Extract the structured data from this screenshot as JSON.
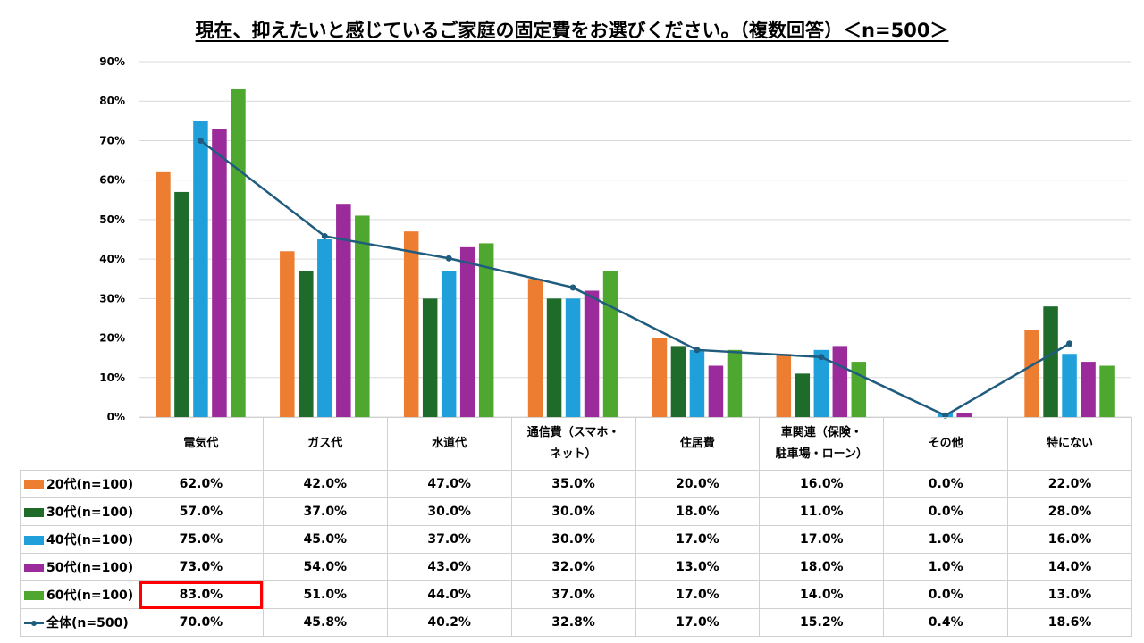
{
  "chart_data": {
    "type": "bar",
    "title": "現在、抑えたいと感じているご家庭の固定費をお選びください。（複数回答）＜n=500＞",
    "categories": [
      "電気代",
      "ガス代",
      "水道代",
      "通信費（スマホ・ネット）",
      "住居費",
      "車関連（保険・駐車場・ローン）",
      "その他",
      "特にない"
    ],
    "category_labels": [
      [
        "電気代"
      ],
      [
        "ガス代"
      ],
      [
        "水道代"
      ],
      [
        "通信費（スマホ・",
        "ネット）"
      ],
      [
        "住居費"
      ],
      [
        "車関連（保険・",
        "駐車場・ローン）"
      ],
      [
        "その他"
      ],
      [
        "特にない"
      ]
    ],
    "ylim": [
      0,
      90
    ],
    "yticks": [
      "0%",
      "10%",
      "20%",
      "30%",
      "40%",
      "50%",
      "60%",
      "70%",
      "80%",
      "90%"
    ],
    "grid": true,
    "series": [
      {
        "name": "20代(n=100)",
        "kind": "bar",
        "color": "#ED7D31",
        "values": [
          62.0,
          42.0,
          47.0,
          35.0,
          20.0,
          16.0,
          0.0,
          22.0
        ],
        "labels": [
          "62.0%",
          "42.0%",
          "47.0%",
          "35.0%",
          "20.0%",
          "16.0%",
          "0.0%",
          "22.0%"
        ]
      },
      {
        "name": "30代(n=100)",
        "kind": "bar",
        "color": "#1E6B2A",
        "values": [
          57.0,
          37.0,
          30.0,
          30.0,
          18.0,
          11.0,
          0.0,
          28.0
        ],
        "labels": [
          "57.0%",
          "37.0%",
          "30.0%",
          "30.0%",
          "18.0%",
          "11.0%",
          "0.0%",
          "28.0%"
        ]
      },
      {
        "name": "40代(n=100)",
        "kind": "bar",
        "color": "#1FA0DB",
        "values": [
          75.0,
          45.0,
          37.0,
          30.0,
          17.0,
          17.0,
          1.0,
          16.0
        ],
        "labels": [
          "75.0%",
          "45.0%",
          "37.0%",
          "30.0%",
          "17.0%",
          "17.0%",
          "1.0%",
          "16.0%"
        ]
      },
      {
        "name": "50代(n=100)",
        "kind": "bar",
        "color": "#9B2A9B",
        "values": [
          73.0,
          54.0,
          43.0,
          32.0,
          13.0,
          18.0,
          1.0,
          14.0
        ],
        "labels": [
          "73.0%",
          "54.0%",
          "43.0%",
          "32.0%",
          "13.0%",
          "18.0%",
          "1.0%",
          "14.0%"
        ]
      },
      {
        "name": "60代(n=100)",
        "kind": "bar",
        "color": "#4EA72E",
        "values": [
          83.0,
          51.0,
          44.0,
          37.0,
          17.0,
          14.0,
          0.0,
          13.0
        ],
        "labels": [
          "83.0%",
          "51.0%",
          "44.0%",
          "37.0%",
          "17.0%",
          "14.0%",
          "0.0%",
          "13.0%"
        ]
      },
      {
        "name": "全体(n=500)",
        "kind": "line",
        "color": "#1F5C7E",
        "values": [
          70.0,
          45.8,
          40.2,
          32.8,
          17.0,
          15.2,
          0.4,
          18.6
        ],
        "labels": [
          "70.0%",
          "45.8%",
          "40.2%",
          "32.8%",
          "17.0%",
          "15.2%",
          "0.4%",
          "18.6%"
        ]
      }
    ],
    "highlight": {
      "series": 4,
      "category": 0,
      "color": "#FF0000"
    }
  }
}
